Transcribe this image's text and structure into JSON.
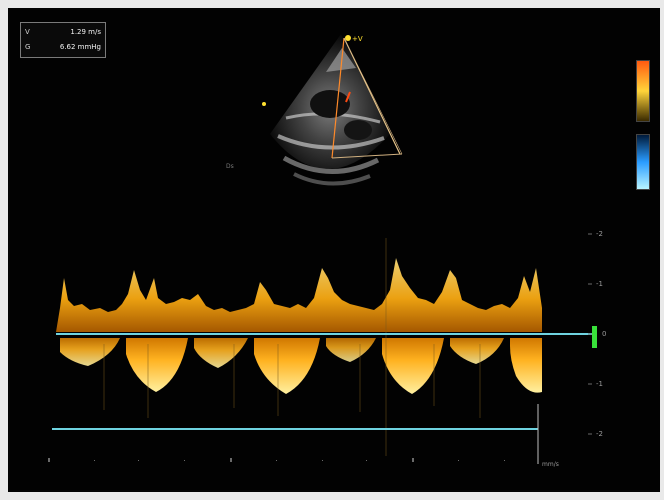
{
  "measurements": [
    {
      "icon": "velocity-icon",
      "label": "V",
      "value": "1.29 m/s"
    },
    {
      "icon": "gradient-icon",
      "label": "G",
      "value": "6.62 mmHg"
    }
  ],
  "scale_labels": [
    "-2",
    "-1",
    "0",
    "-1",
    "-2"
  ],
  "cursor_label": "+V",
  "sweep_speed_label": "mm/s",
  "colors": {
    "doppler": "#ffb21a",
    "baseline": "#6fd3e0",
    "background": "#020202",
    "marker": "#38e23a"
  }
}
